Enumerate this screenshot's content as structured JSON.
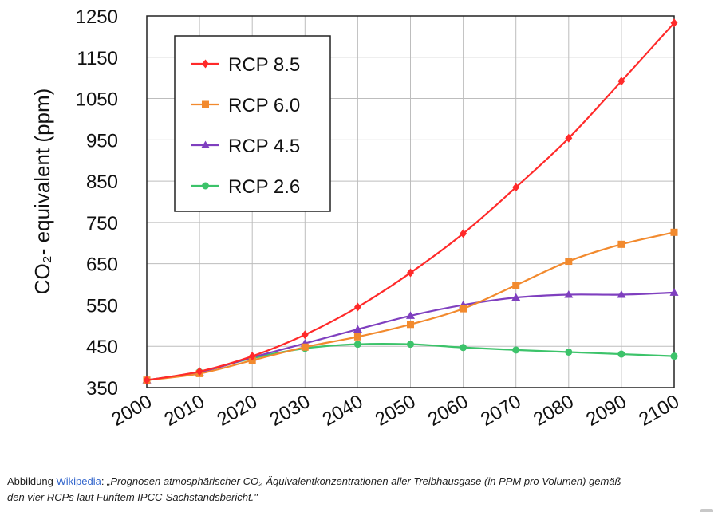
{
  "chart_data": {
    "type": "line",
    "xlabel": "",
    "ylabel": "CO₂- equivalent (ppm)",
    "x": [
      2000,
      2010,
      2020,
      2030,
      2040,
      2050,
      2060,
      2070,
      2080,
      2090,
      2100
    ],
    "xlim": [
      2000,
      2100
    ],
    "ylim": [
      350,
      1250
    ],
    "yticks": [
      350,
      450,
      550,
      650,
      750,
      850,
      950,
      1050,
      1150,
      1250
    ],
    "xticks": [
      2000,
      2010,
      2020,
      2030,
      2040,
      2050,
      2060,
      2070,
      2080,
      2090,
      2100
    ],
    "grid": true,
    "legend_position": "top-left",
    "series": [
      {
        "name": "RCP 8.5",
        "color": "#ff2a2a",
        "marker": "diamond",
        "values": [
          368,
          389,
          426,
          478,
          545,
          628,
          723,
          835,
          954,
          1092,
          1233
        ]
      },
      {
        "name": "RCP 6.0",
        "color": "#f28a2e",
        "marker": "square",
        "values": [
          368,
          384,
          416,
          448,
          473,
          503,
          541,
          598,
          656,
          697,
          726
        ]
      },
      {
        "name": "RCP 4.5",
        "color": "#7f3fbf",
        "marker": "triangle",
        "values": [
          368,
          387,
          423,
          457,
          491,
          524,
          550,
          568,
          575,
          575,
          580
        ]
      },
      {
        "name": "RCP 2.6",
        "color": "#3cc36a",
        "marker": "circle",
        "values": [
          368,
          388,
          421,
          445,
          455,
          455,
          447,
          441,
          436,
          431,
          426
        ]
      }
    ]
  },
  "caption": {
    "prefix": "Abbildung ",
    "link": "Wikipedia",
    "colon": ": ",
    "quote_line1": "„Prognosen atmosphärischer CO₂-Äquivalentkonzentrationen aller Treibhausgase (in PPM pro Volumen) gemäß",
    "quote_line2": "den vier RCPs laut Fünftem IPCC-Sachstandsbericht.\""
  }
}
